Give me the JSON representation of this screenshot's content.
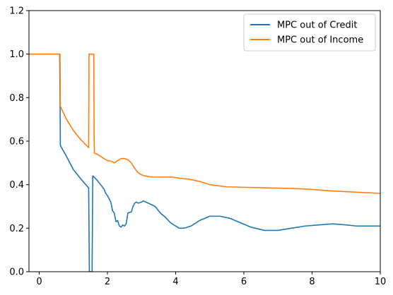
{
  "chart_data": {
    "type": "line",
    "title": "",
    "xlabel": "",
    "ylabel": "",
    "xlim": [
      -0.3,
      10
    ],
    "ylim": [
      0,
      1.2
    ],
    "xticks": [
      0,
      2,
      4,
      6,
      8,
      10
    ],
    "xtick_labels": [
      "0",
      "2",
      "4",
      "6",
      "8",
      "10"
    ],
    "yticks": [
      0.0,
      0.2,
      0.4,
      0.6,
      0.8,
      1.0,
      1.2
    ],
    "ytick_labels": [
      "0.0",
      "0.2",
      "0.4",
      "0.6",
      "0.8",
      "1.0",
      "1.2"
    ],
    "grid": false,
    "legend_position": "top-right",
    "series": [
      {
        "name": "MPC out of Credit",
        "color": "#1f77b4",
        "x": [
          -0.3,
          0.0,
          0.3,
          0.6,
          0.61,
          0.62,
          0.8,
          1.0,
          1.2,
          1.45,
          1.46,
          1.47,
          1.49,
          1.55,
          1.56,
          1.57,
          1.58,
          1.7,
          1.8,
          1.9,
          1.95,
          2.0,
          2.1,
          2.15,
          2.2,
          2.25,
          2.3,
          2.35,
          2.4,
          2.45,
          2.5,
          2.55,
          2.6,
          2.7,
          2.75,
          2.8,
          2.85,
          2.9,
          3.0,
          3.05,
          3.2,
          3.4,
          3.55,
          3.7,
          3.85,
          3.95,
          4.1,
          4.25,
          4.45,
          4.7,
          5.0,
          5.3,
          5.6,
          5.9,
          6.2,
          6.6,
          7.0,
          7.4,
          7.8,
          8.2,
          8.6,
          9.0,
          9.3,
          9.7,
          10.0
        ],
        "y": [
          1.0,
          1.0,
          1.0,
          1.0,
          0.8,
          0.58,
          0.53,
          0.47,
          0.43,
          0.385,
          0.2,
          0.0,
          0.0,
          0.0,
          0.2,
          0.44,
          0.44,
          0.42,
          0.4,
          0.38,
          0.36,
          0.35,
          0.32,
          0.28,
          0.27,
          0.23,
          0.235,
          0.21,
          0.205,
          0.215,
          0.21,
          0.22,
          0.27,
          0.275,
          0.3,
          0.315,
          0.32,
          0.315,
          0.32,
          0.325,
          0.315,
          0.3,
          0.27,
          0.25,
          0.225,
          0.215,
          0.2,
          0.2,
          0.21,
          0.235,
          0.255,
          0.255,
          0.245,
          0.225,
          0.205,
          0.19,
          0.19,
          0.2,
          0.21,
          0.215,
          0.22,
          0.215,
          0.21,
          0.21,
          0.21
        ]
      },
      {
        "name": "MPC out of Income",
        "color": "#ff7f0e",
        "x": [
          -0.3,
          0.0,
          0.3,
          0.6,
          0.61,
          0.62,
          0.8,
          1.0,
          1.2,
          1.45,
          1.46,
          1.6,
          1.61,
          1.62,
          1.7,
          1.9,
          2.0,
          2.05,
          2.15,
          2.2,
          2.3,
          2.4,
          2.5,
          2.6,
          2.7,
          2.8,
          2.9,
          3.0,
          3.1,
          3.3,
          3.5,
          3.7,
          3.9,
          4.1,
          4.4,
          4.7,
          5.0,
          5.5,
          6.0,
          6.5,
          7.0,
          7.5,
          8.0,
          8.5,
          9.0,
          9.5,
          10.0
        ],
        "y": [
          1.0,
          1.0,
          1.0,
          1.0,
          1.0,
          0.76,
          0.7,
          0.65,
          0.61,
          0.57,
          1.0,
          1.0,
          0.62,
          0.545,
          0.54,
          0.52,
          0.51,
          0.51,
          0.505,
          0.5,
          0.51,
          0.52,
          0.52,
          0.515,
          0.5,
          0.475,
          0.455,
          0.445,
          0.44,
          0.435,
          0.435,
          0.435,
          0.435,
          0.43,
          0.425,
          0.415,
          0.4,
          0.39,
          0.388,
          0.386,
          0.384,
          0.382,
          0.378,
          0.372,
          0.368,
          0.364,
          0.36
        ]
      }
    ]
  }
}
